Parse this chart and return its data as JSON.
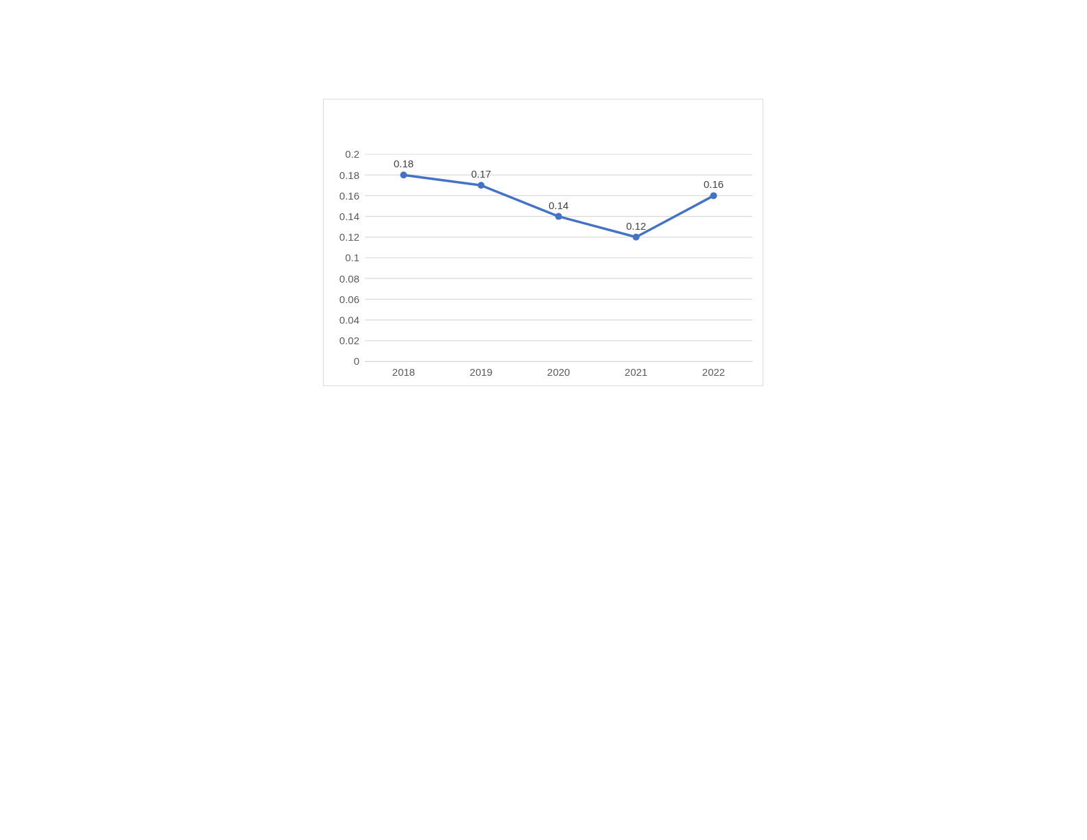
{
  "chart_data": {
    "type": "line",
    "categories": [
      "2018",
      "2019",
      "2020",
      "2021",
      "2022"
    ],
    "series": [
      {
        "color": "#4472c4",
        "values": [
          0.18,
          0.17,
          0.14,
          0.12,
          0.16
        ]
      }
    ],
    "ylim": [
      0,
      0.2
    ],
    "yticks": [
      0,
      0.02,
      0.04,
      0.06,
      0.08,
      0.1,
      0.12,
      0.14,
      0.16,
      0.18,
      0.2
    ],
    "grid": "y",
    "marker": "circle",
    "line_style": "solid",
    "data_labels": true
  }
}
